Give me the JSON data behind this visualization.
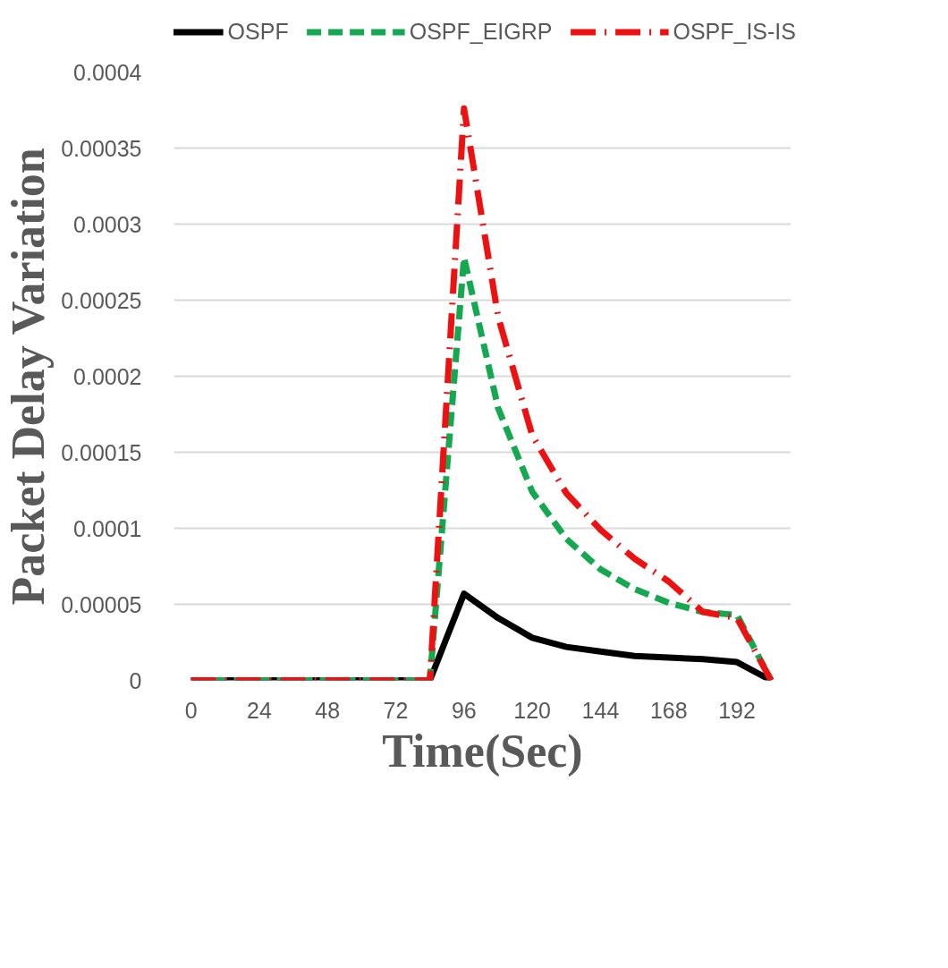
{
  "chart_data": {
    "type": "line",
    "xlabel": "Time(Sec)",
    "ylabel": "Packet Delay Variation",
    "x": [
      0,
      12,
      24,
      36,
      48,
      60,
      72,
      84,
      96,
      108,
      120,
      132,
      144,
      156,
      168,
      180,
      192,
      204
    ],
    "xlim": [
      -6,
      211
    ],
    "xticks": [
      0,
      24,
      48,
      72,
      96,
      120,
      144,
      168,
      192
    ],
    "ylim": [
      0,
      0.0004
    ],
    "yticks": [
      0,
      {
        "value": 5e-05,
        "label": "0.00005"
      },
      {
        "value": 0.0001,
        "label": "0.0001"
      },
      {
        "value": 0.00015,
        "label": "0.00015"
      },
      {
        "value": 0.0002,
        "label": "0.0002"
      },
      {
        "value": 0.00025,
        "label": "0.00025"
      },
      {
        "value": 0.0003,
        "label": "0.0003"
      },
      {
        "value": 0.00035,
        "label": "0.00035"
      },
      {
        "value": 0.0004,
        "label": "0.0004"
      }
    ],
    "grid": "y",
    "legend": "top",
    "marker": "none",
    "series": [
      {
        "name": "OSPF",
        "color": "#000000",
        "line_style": "solid",
        "values": [
          0,
          0,
          0,
          0,
          0,
          0,
          0,
          0,
          5.7e-05,
          4.1e-05,
          2.8e-05,
          2.2e-05,
          1.9e-05,
          1.6e-05,
          1.5e-05,
          1.4e-05,
          1.2e-05,
          0
        ]
      },
      {
        "name": "OSPF_EIGRP",
        "color": "#14a850",
        "line_style": "dashed",
        "values": [
          0,
          0,
          0,
          0,
          0,
          0,
          0,
          0,
          0.000278,
          0.000179,
          0.000124,
          9.3e-05,
          7.3e-05,
          6e-05,
          5.1e-05,
          4.5e-05,
          4.3e-05,
          0
        ]
      },
      {
        "name": "OSPF_IS-IS",
        "color": "#ee1111",
        "line_style": "dashdot",
        "values": [
          0,
          0,
          0,
          0,
          0,
          0,
          0,
          0,
          0.000376,
          0.000239,
          0.000161,
          0.000123,
          9.9e-05,
          8e-05,
          6.5e-05,
          4.5e-05,
          4.1e-05,
          0
        ]
      }
    ]
  }
}
